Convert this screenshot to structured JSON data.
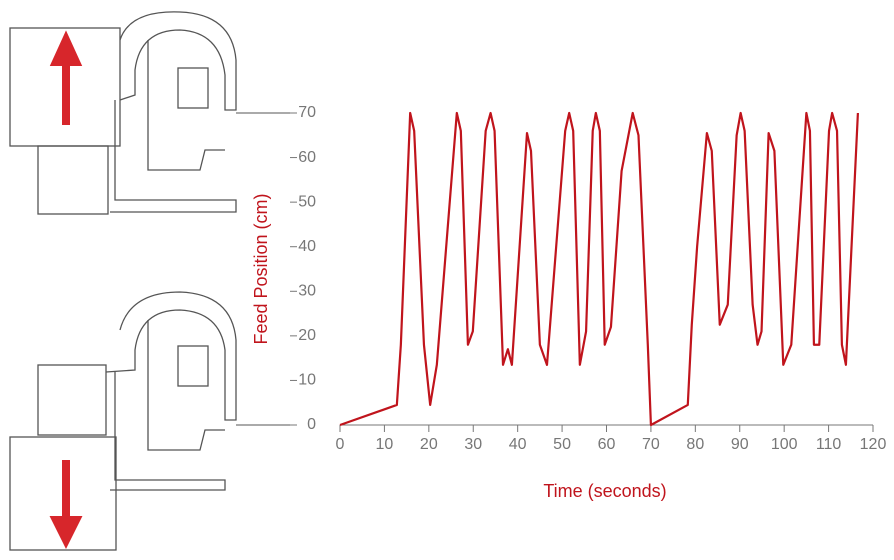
{
  "chart_data": {
    "type": "line",
    "xlabel": "Time (seconds)",
    "ylabel": "Feed Position (cm)",
    "xlim": [
      0,
      120
    ],
    "xticks": [
      0,
      10,
      20,
      30,
      40,
      50,
      60,
      70,
      80,
      90,
      100,
      110,
      120
    ],
    "ylim": [
      0,
      70
    ],
    "yticks": [
      0,
      10,
      20,
      30,
      40,
      50,
      60,
      70
    ],
    "series": [
      {
        "color": "#c0141c",
        "x": [
          0,
          12.8,
          13.7,
          15.8,
          16.7,
          18.9,
          20.3,
          21.8,
          26.3,
          27.2,
          28.8,
          29.9,
          32.8,
          33.9,
          34.8,
          36.7,
          37.8,
          38.7,
          42.1,
          43,
          45,
          46.6,
          50.7,
          51.6,
          52.5,
          54,
          55.4,
          56.9,
          57.6,
          58.5,
          59.6,
          61,
          63.4,
          65.9,
          67.2,
          69.3,
          70,
          78.3,
          79.2,
          80.4,
          82.6,
          83.7,
          85.5,
          87.3,
          89.3,
          90.2,
          91.1,
          92.9,
          94,
          94.9,
          96.5,
          97.8,
          99.8,
          101.6,
          105,
          105.8,
          106.7,
          107.9,
          110.1,
          110.8,
          111.9,
          113,
          113.9,
          116.6
        ],
        "values": [
          0,
          4.5,
          18,
          70,
          66,
          18,
          4.5,
          13.5,
          70,
          66,
          18,
          21,
          66,
          70,
          66,
          13.5,
          17,
          13.5,
          65.5,
          61.5,
          18,
          13.5,
          66,
          70,
          66,
          13.5,
          21,
          66,
          70,
          66,
          18,
          22,
          57,
          70,
          65,
          18,
          0,
          4.5,
          22.5,
          40,
          65.5,
          61.5,
          22.5,
          27,
          65,
          70,
          66,
          27,
          18,
          21,
          65.5,
          61.5,
          13.5,
          18,
          70,
          66,
          18,
          18,
          66,
          70,
          66,
          18,
          13.5,
          70
        ]
      }
    ]
  }
}
